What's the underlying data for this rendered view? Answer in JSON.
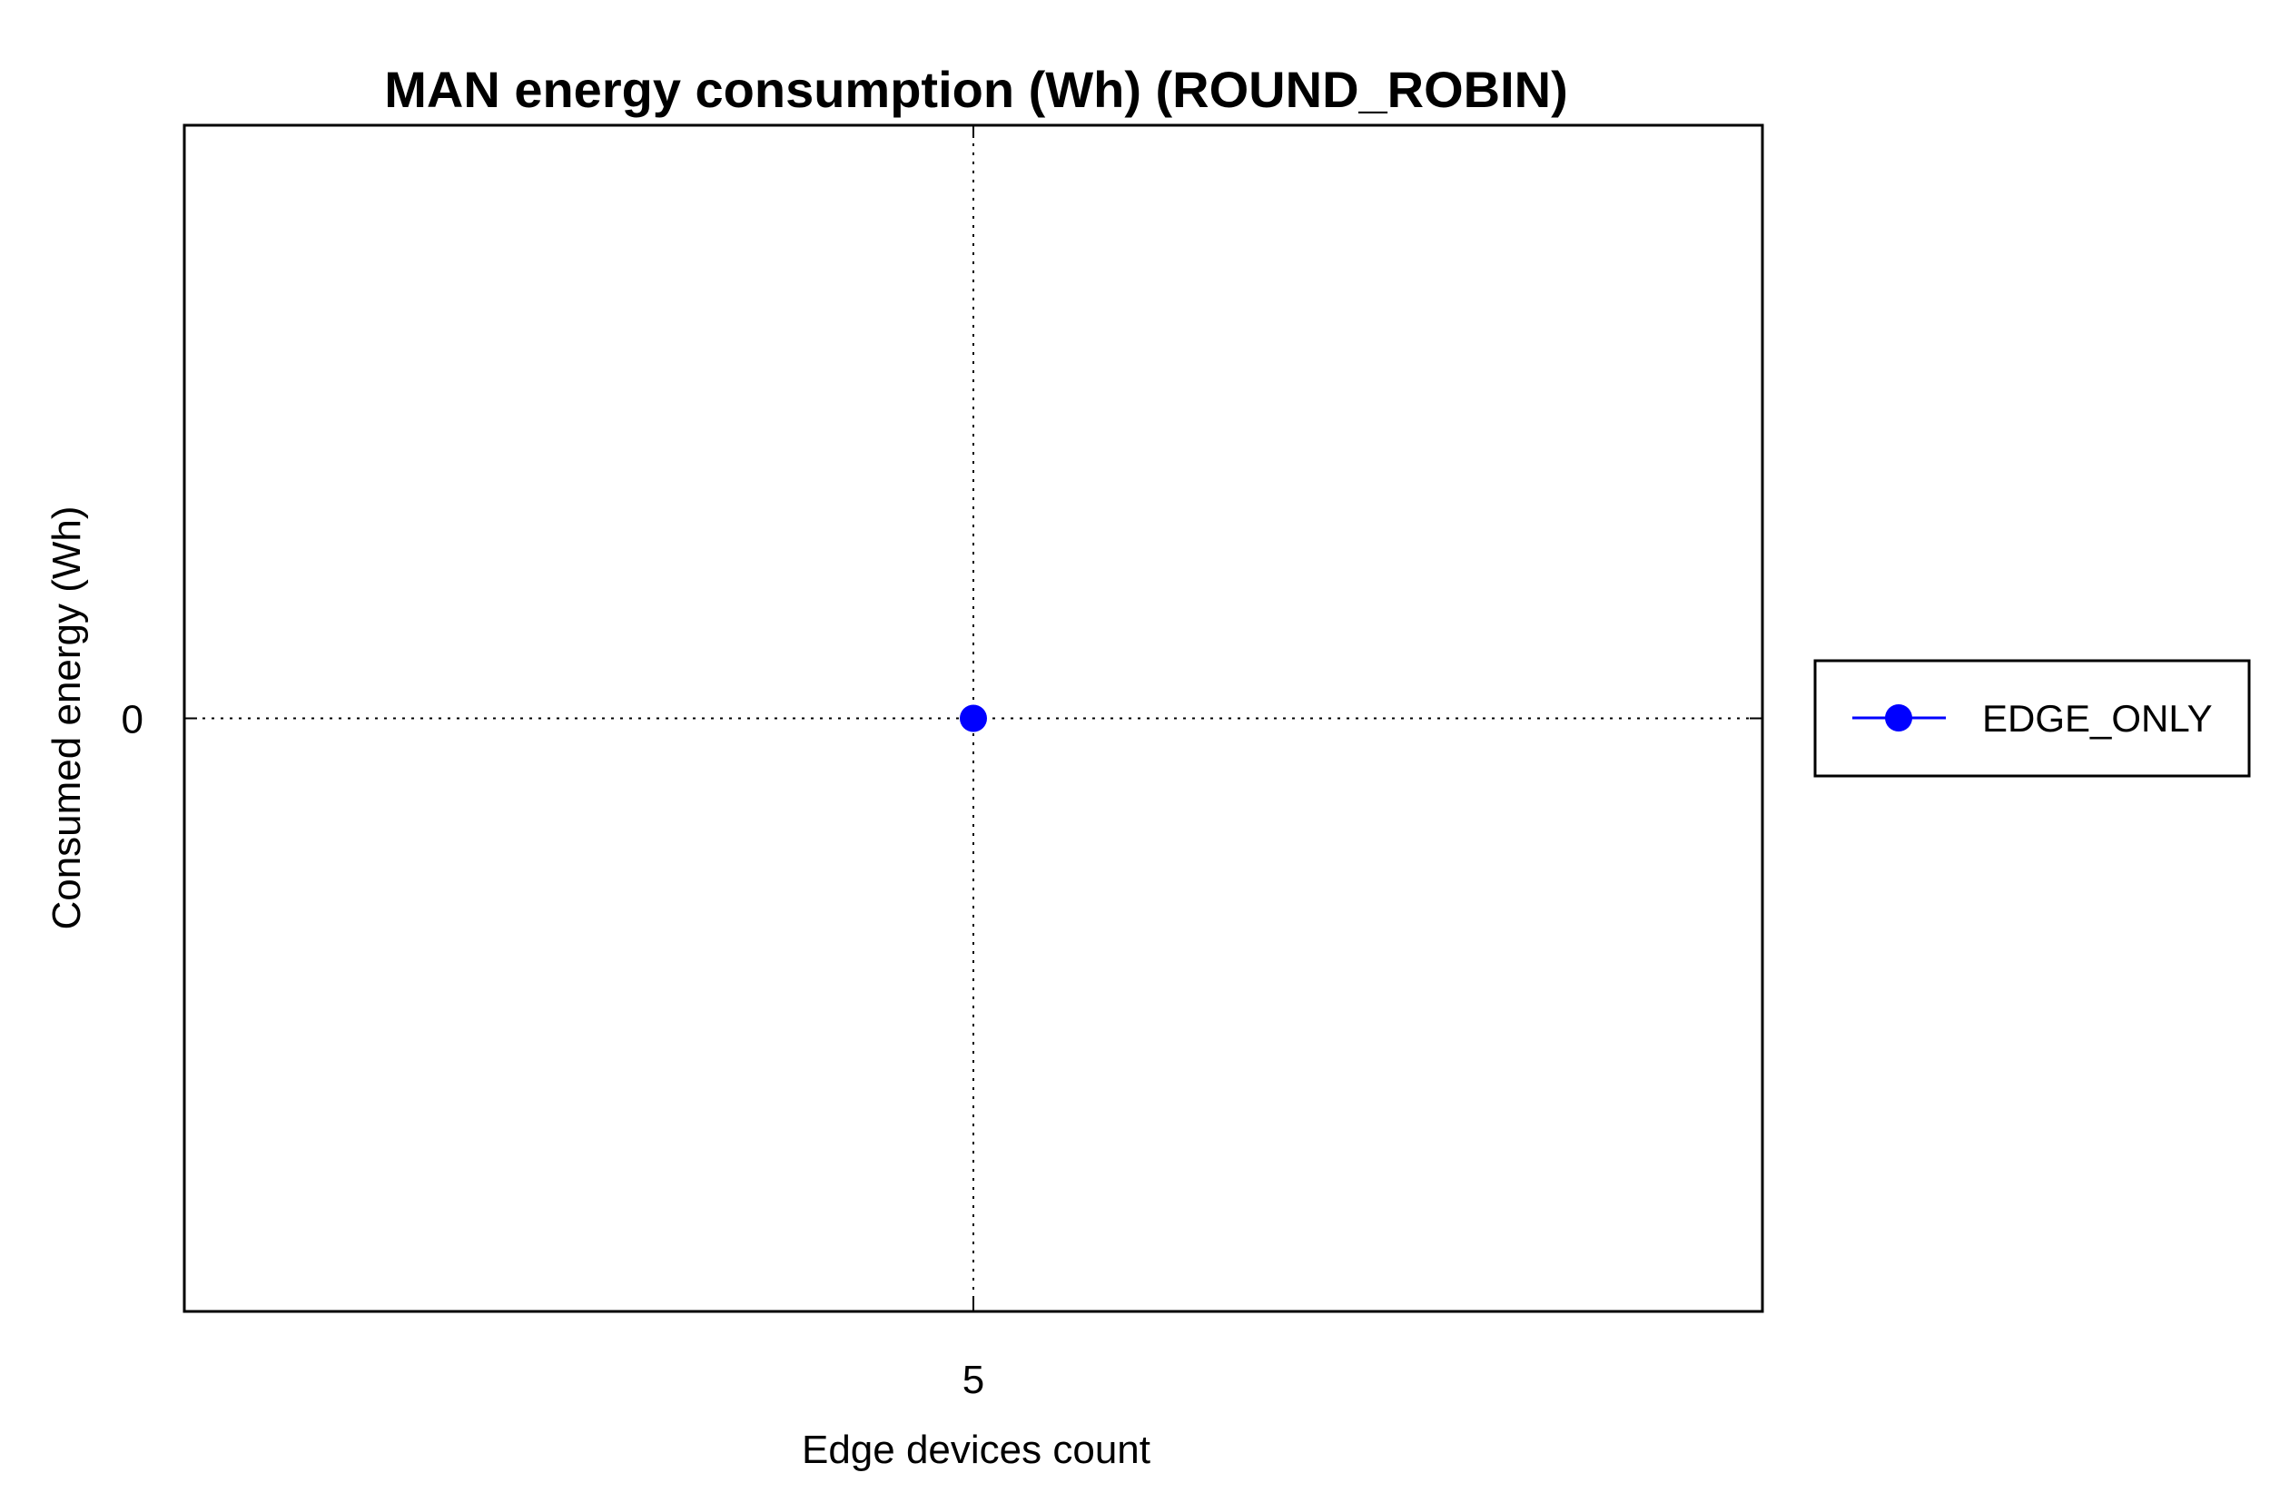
{
  "chart_data": {
    "type": "line",
    "title": "MAN energy consumption (Wh) (ROUND_ROBIN)",
    "xlabel": "Edge devices count",
    "ylabel": "Consumed energy (Wh)",
    "x": [
      5
    ],
    "x_ticks": [
      "5"
    ],
    "y_ticks": [
      "0"
    ],
    "xlim": [
      4,
      6
    ],
    "ylim": [
      -1,
      1
    ],
    "grid": true,
    "legend_position": "right",
    "series": [
      {
        "name": "EDGE_ONLY",
        "color": "#0000ff",
        "marker": "circle",
        "x": [
          5
        ],
        "values": [
          0
        ]
      }
    ]
  }
}
